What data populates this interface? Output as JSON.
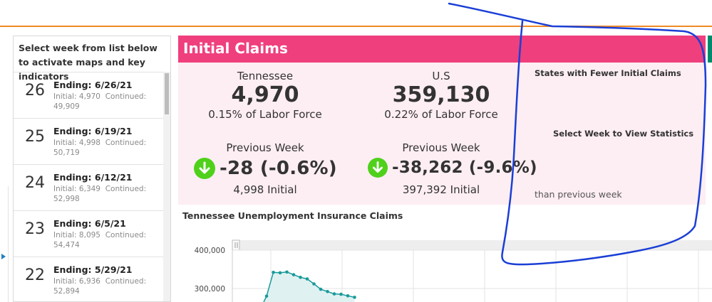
{
  "week_panel": {
    "header": "Select week from list below to activate maps and key indicators",
    "weeks": [
      {
        "num": "26",
        "ending": "Ending: 6/26/21",
        "initial": "Initial: 4,970",
        "continued": "Continued: 49,909"
      },
      {
        "num": "25",
        "ending": "Ending: 6/19/21",
        "initial": "Initial: 4,998",
        "continued": "Continued: 50,719"
      },
      {
        "num": "24",
        "ending": "Ending: 6/12/21",
        "initial": "Initial: 6,349",
        "continued": "Continued: 52,998"
      },
      {
        "num": "23",
        "ending": "Ending: 6/5/21",
        "initial": "Initial: 8,095",
        "continued": "Continued: 54,474"
      },
      {
        "num": "22",
        "ending": "Ending: 5/29/21",
        "initial": "Initial: 6,936",
        "continued": "Continued: 52,894"
      }
    ]
  },
  "claims": {
    "title": "Initial Claims",
    "tennessee": {
      "name": "Tennessee",
      "value": "4,970",
      "pct": "0.15% of Labor Force",
      "prev_label": "Previous Week",
      "change": "-28 (-0.6%)",
      "prev_initial": "4,998 Initial"
    },
    "us": {
      "name": "U.S",
      "value": "359,130",
      "pct": "0.22% of Labor Force",
      "prev_label": "Previous Week",
      "change": "-38,262 (-9.6%)",
      "prev_initial": "397,392 Initial"
    },
    "fewer_title": "States with Fewer Initial Claims",
    "select_week": "Select Week to View Statistics",
    "than_previous": "than previous week"
  },
  "chart_data": {
    "type": "area",
    "title": "Tennessee Unemployment Insurance Claims",
    "y_ticks": [
      "400,000",
      "300,000"
    ],
    "ylim": [
      250000,
      410000
    ],
    "series": [
      {
        "values": [
          280000,
          342000,
          341000,
          343000,
          336000,
          329000,
          325000,
          312000,
          298000,
          292000,
          286000,
          285000,
          281000,
          277000
        ]
      }
    ],
    "line_color": "#1a9a9a",
    "fill_color": "#e0f1f2"
  },
  "colors": {
    "accent_orange": "#f08a24",
    "title_pink": "#ef3f7d",
    "body_pink": "#fdeef3",
    "down_green": "#4fd11b",
    "annotation_blue": "#1a3fd6"
  }
}
